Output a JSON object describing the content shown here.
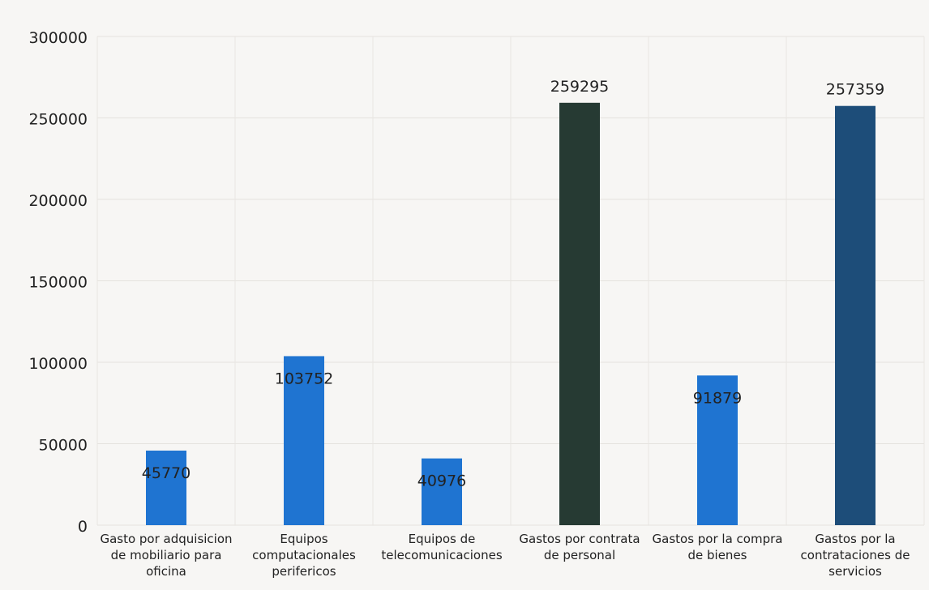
{
  "chart_data": {
    "type": "bar",
    "categories": [
      [
        "Gasto por adquisicion",
        "de mobiliario para",
        "oficina"
      ],
      [
        "Equipos",
        "computacionales",
        "perifericos"
      ],
      [
        "Equipos de",
        "telecomunicaciones"
      ],
      [
        "Gastos por contrata",
        "de personal"
      ],
      [
        "Gastos por la compra",
        "de bienes"
      ],
      [
        "Gastos por la",
        "contrataciones de",
        "servicios"
      ]
    ],
    "values": [
      45770,
      103752,
      40976,
      259295,
      91879,
      257359
    ],
    "data_labels": [
      "45770",
      "103752",
      "40976",
      "259295",
      "91879",
      "257359"
    ],
    "bar_colors": [
      "#1f74d1",
      "#1f74d1",
      "#1f74d1",
      "#263a33",
      "#1f74d1",
      "#1d4d79"
    ],
    "ylim": [
      0,
      300000
    ],
    "yticks": [
      "0",
      "50000",
      "100000",
      "150000",
      "200000",
      "250000",
      "300000"
    ],
    "grid": true,
    "title": "",
    "xlabel": "",
    "ylabel": ""
  }
}
